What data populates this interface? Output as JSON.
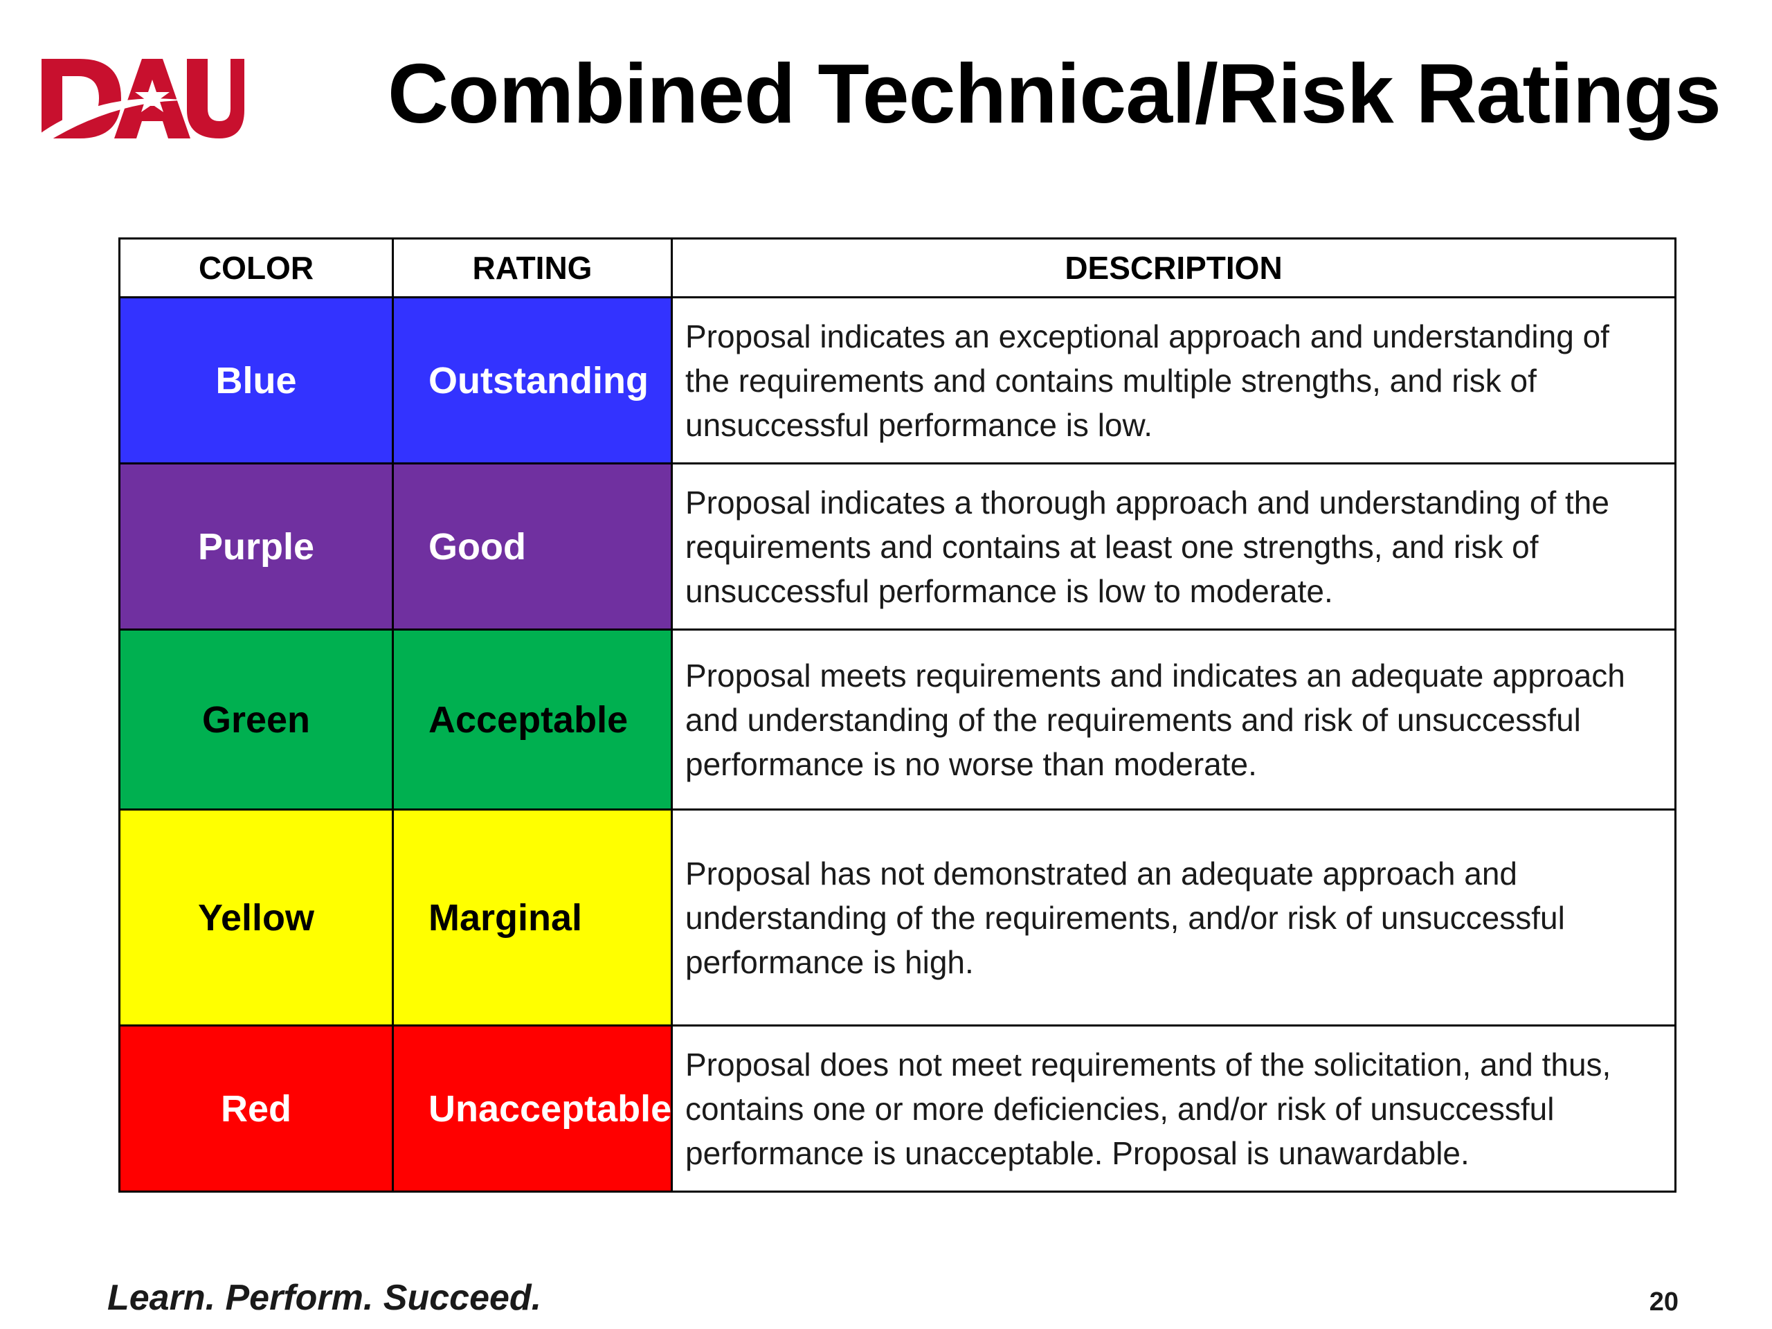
{
  "header": {
    "logo_text": "DAU",
    "title": "Combined Technical/Risk Ratings"
  },
  "table": {
    "headers": [
      "COLOR",
      "RATING",
      "DESCRIPTION"
    ],
    "rows": [
      {
        "color": "Blue",
        "rating": "Outstanding",
        "description": "Proposal indicates an exceptional approach and understanding of the requirements and contains multiple strengths, and risk of unsuccessful performance is low.",
        "bg": "#3333ff",
        "fg": "#ffffff"
      },
      {
        "color": "Purple",
        "rating": "Good",
        "description": "Proposal indicates a thorough approach and understanding of the requirements and contains at least one strengths, and risk of unsuccessful performance is low to moderate.",
        "bg": "#7030a0",
        "fg": "#ffffff"
      },
      {
        "color": "Green",
        "rating": "Acceptable",
        "description": "Proposal meets requirements and indicates an adequate approach and understanding of the requirements and risk of unsuccessful performance is no worse than moderate.",
        "bg": "#00b050",
        "fg": "#000000"
      },
      {
        "color": "Yellow",
        "rating": "Marginal",
        "description": "Proposal has not demonstrated an adequate approach and understanding of the requirements, and/or risk of unsuccessful performance is high.",
        "bg": "#ffff00",
        "fg": "#000000"
      },
      {
        "color": "Red",
        "rating": "Unacceptable",
        "description": "Proposal does not meet requirements of the solicitation, and thus, contains one or more deficiencies, and/or risk of unsuccessful performance is unacceptable. Proposal is unawardable.",
        "bg": "#ff0000",
        "fg": "#ffffff"
      }
    ]
  },
  "footer": {
    "slogan": "Learn. Perform. Succeed.",
    "page_number": "20"
  },
  "colors": {
    "logo_red": "#c8102e"
  }
}
